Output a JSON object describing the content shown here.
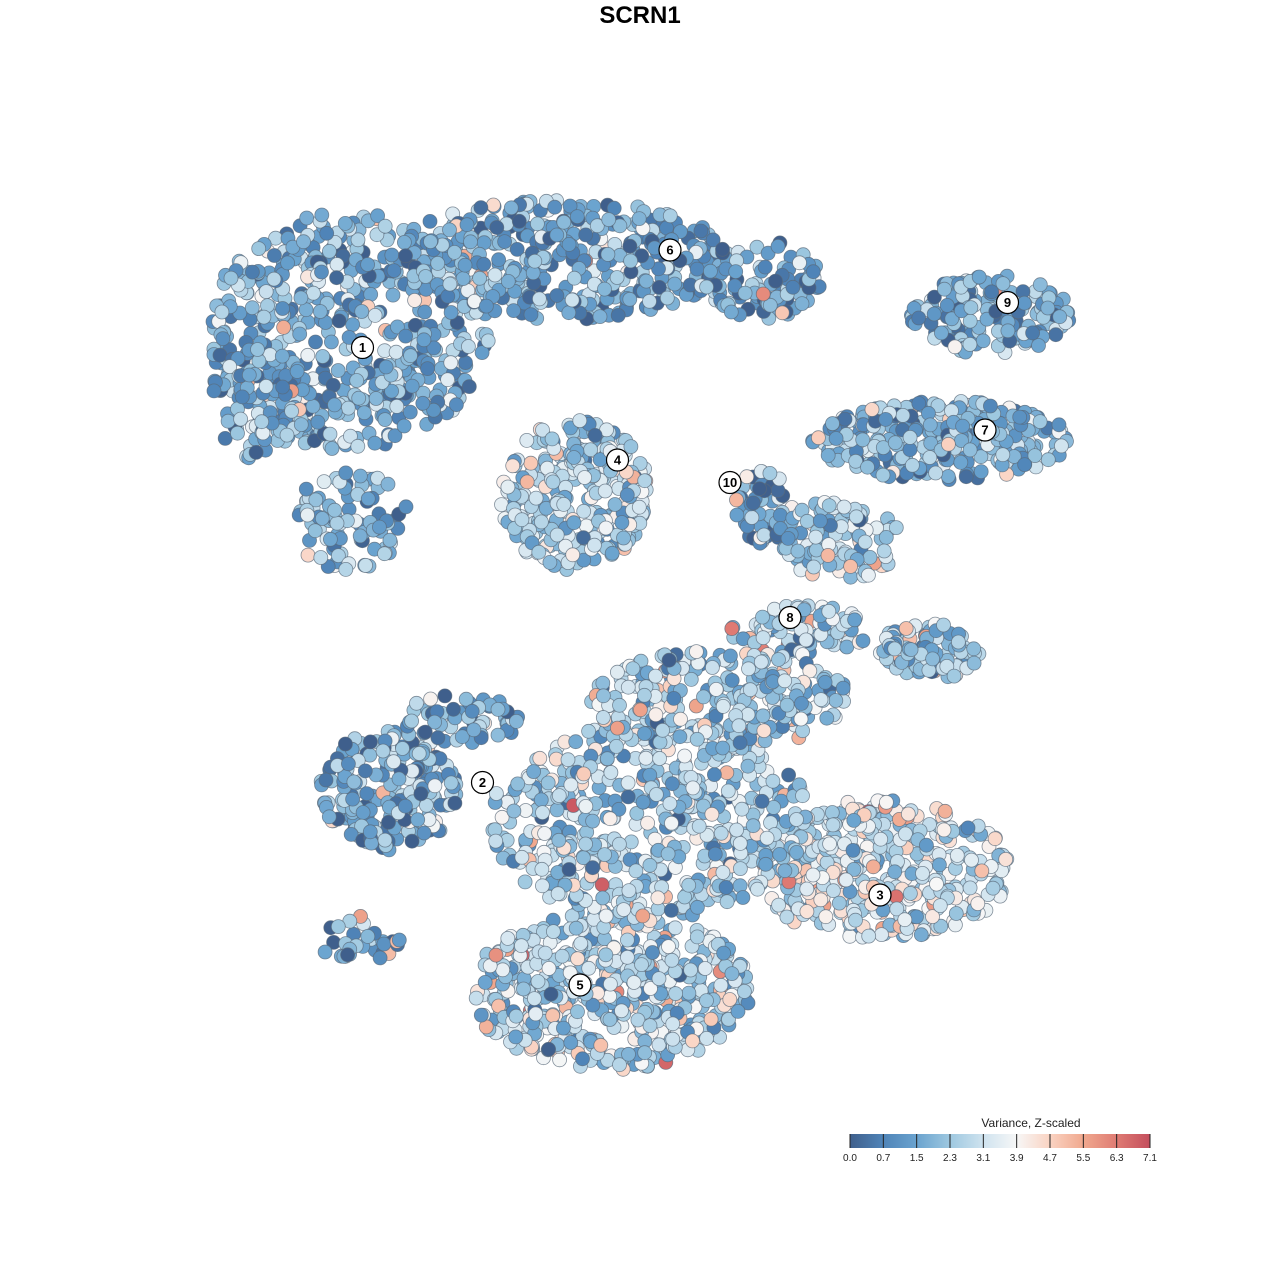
{
  "chart_data": {
    "type": "scatter",
    "title": "SCRN1",
    "xlabel": "",
    "ylabel": "",
    "grid": false,
    "legend": {
      "title": "Variance, Z-scaled",
      "placement": "bottom-right",
      "ticks": [
        "0.0",
        "0.7",
        "1.5",
        "2.3",
        "3.1",
        "3.9",
        "4.7",
        "5.5",
        "6.3",
        "7.1"
      ],
      "range": [
        0.0,
        7.1
      ],
      "colors": [
        "#3f5f8c",
        "#4f84b8",
        "#6aa3cf",
        "#9ec8e0",
        "#cfe3ef",
        "#f7f7f7",
        "#fad3c2",
        "#f0a88e",
        "#df7b73",
        "#c44e5d"
      ]
    },
    "clusters": [
      {
        "label": "1",
        "x": -3.7,
        "y": 3.9,
        "mean": 1.8
      },
      {
        "label": "2",
        "x": -2.1,
        "y": -1.9,
        "mean": 1.6
      },
      {
        "label": "3",
        "x": 3.2,
        "y": -3.4,
        "mean": 3.2
      },
      {
        "label": "4",
        "x": -0.3,
        "y": 2.4,
        "mean": 2.6
      },
      {
        "label": "5",
        "x": -0.8,
        "y": -4.6,
        "mean": 2.7
      },
      {
        "label": "6",
        "x": 0.4,
        "y": 5.2,
        "mean": 1.6
      },
      {
        "label": "7",
        "x": 4.6,
        "y": 2.8,
        "mean": 2.0
      },
      {
        "label": "8",
        "x": 2.0,
        "y": 0.3,
        "mean": 2.5
      },
      {
        "label": "9",
        "x": 4.9,
        "y": 4.5,
        "mean": 1.7
      },
      {
        "label": "10",
        "x": 1.2,
        "y": 2.1,
        "mean": 1.5
      }
    ]
  }
}
